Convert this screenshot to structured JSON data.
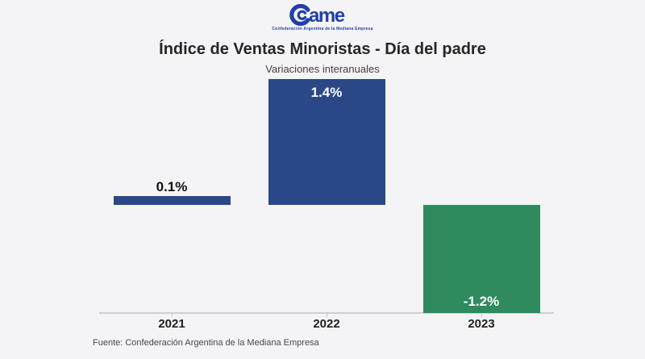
{
  "logo": {
    "wordmark": "ame",
    "caption": "Confederación Argentina de la Mediana Empresa",
    "color": "#2340a5"
  },
  "header": {
    "title": "Índice de Ventas Minoristas - Día del padre",
    "subtitle": "Variaciones interanuales"
  },
  "chart_data": {
    "type": "bar",
    "title": "Índice de Ventas Minoristas - Día del padre",
    "subtitle": "Variaciones interanuales",
    "categories": [
      "2021",
      "2022",
      "2023"
    ],
    "values": [
      0.1,
      1.4,
      -1.2
    ],
    "value_labels": [
      "0.1%",
      "1.4%",
      "-1.2%"
    ],
    "bar_colors": [
      "#2a4787",
      "#2a4787",
      "#2f8b5e"
    ],
    "label_positions": [
      "above",
      "inside-top",
      "inside-bottom"
    ],
    "label_colors": [
      "#111111",
      "#ffffff",
      "#ffffff"
    ],
    "xlabel": "",
    "ylabel": "",
    "ylim": [
      -1.2,
      1.4
    ],
    "grid": false,
    "legend": false
  },
  "footer": {
    "source": "Fuente: Confederación Argentina de la Mediana Empresa"
  }
}
